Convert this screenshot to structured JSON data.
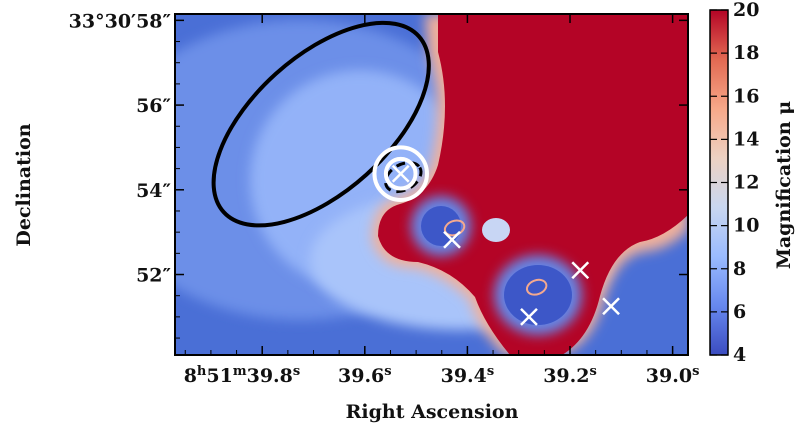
{
  "chart_data": {
    "type": "heatmap",
    "title": "",
    "xlabel": "Right Ascension",
    "ylabel": "Declination",
    "x_tick_labels": [
      {
        "h": "8",
        "m": "51",
        "s": "39.8",
        "value": 39.8
      },
      {
        "s": "39.6",
        "value": 39.6
      },
      {
        "s": "39.4",
        "value": 39.4
      },
      {
        "s": "39.2",
        "value": 39.2
      },
      {
        "s": "39.0",
        "value": 39.0
      }
    ],
    "y_tick_labels": [
      {
        "text": "33°30′58″",
        "value": 58
      },
      {
        "text": "56″",
        "value": 56
      },
      {
        "text": "54″",
        "value": 54
      },
      {
        "text": "52″",
        "value": 52
      }
    ],
    "xlim_seconds": [
      39.97,
      38.97
    ],
    "ylim_arcsec": [
      50.1,
      58.15
    ],
    "colorbar": {
      "label": "Magnification μ",
      "ticks": [
        4,
        6,
        8,
        10,
        12,
        14,
        16,
        18,
        20
      ],
      "range": [
        4,
        20
      ],
      "colors": [
        "#3b4cc0",
        "#6788ee",
        "#9abbff",
        "#c9d7f0",
        "#edd1c2",
        "#f7a889",
        "#e26952",
        "#b40426"
      ]
    },
    "magnification_regions": {
      "high_region_color": "#b40426",
      "low_islands": [
        {
          "ra": 39.43,
          "dec": 53.05,
          "mu": 5
        },
        {
          "ra": 39.26,
          "dec": 51.55,
          "mu": 5
        }
      ]
    },
    "ellipses": [
      {
        "name": "large-ellipse",
        "ra": 39.685,
        "dec": 55.55,
        "a_arcsec": 3.1,
        "b_arcsec": 1.6,
        "angle_deg": -42,
        "color": "#000000",
        "style": "solid"
      },
      {
        "name": "dashed-ellipse",
        "ra": 39.525,
        "dec": 54.3,
        "a_arcsec": 0.45,
        "b_arcsec": 0.3,
        "angle_deg": -30,
        "color": "#000000",
        "style": "dashed"
      }
    ],
    "circles": [
      {
        "name": "outer-circle",
        "ra": 39.53,
        "dec": 54.38,
        "r_arcsec": 0.62,
        "color": "#ffffff"
      },
      {
        "name": "inner-circle",
        "ra": 39.53,
        "dec": 54.38,
        "r_arcsec": 0.35,
        "color": "#ffffff"
      }
    ],
    "crosses": [
      {
        "ra": 39.53,
        "dec": 54.38
      },
      {
        "ra": 39.43,
        "dec": 52.82
      },
      {
        "ra": 39.28,
        "dec": 51.0
      },
      {
        "ra": 39.18,
        "dec": 52.1
      },
      {
        "ra": 39.12,
        "dec": 51.25
      }
    ],
    "small_arcs": [
      {
        "ra": 39.425,
        "dec": 53.1
      },
      {
        "ra": 39.265,
        "dec": 51.7
      }
    ]
  }
}
